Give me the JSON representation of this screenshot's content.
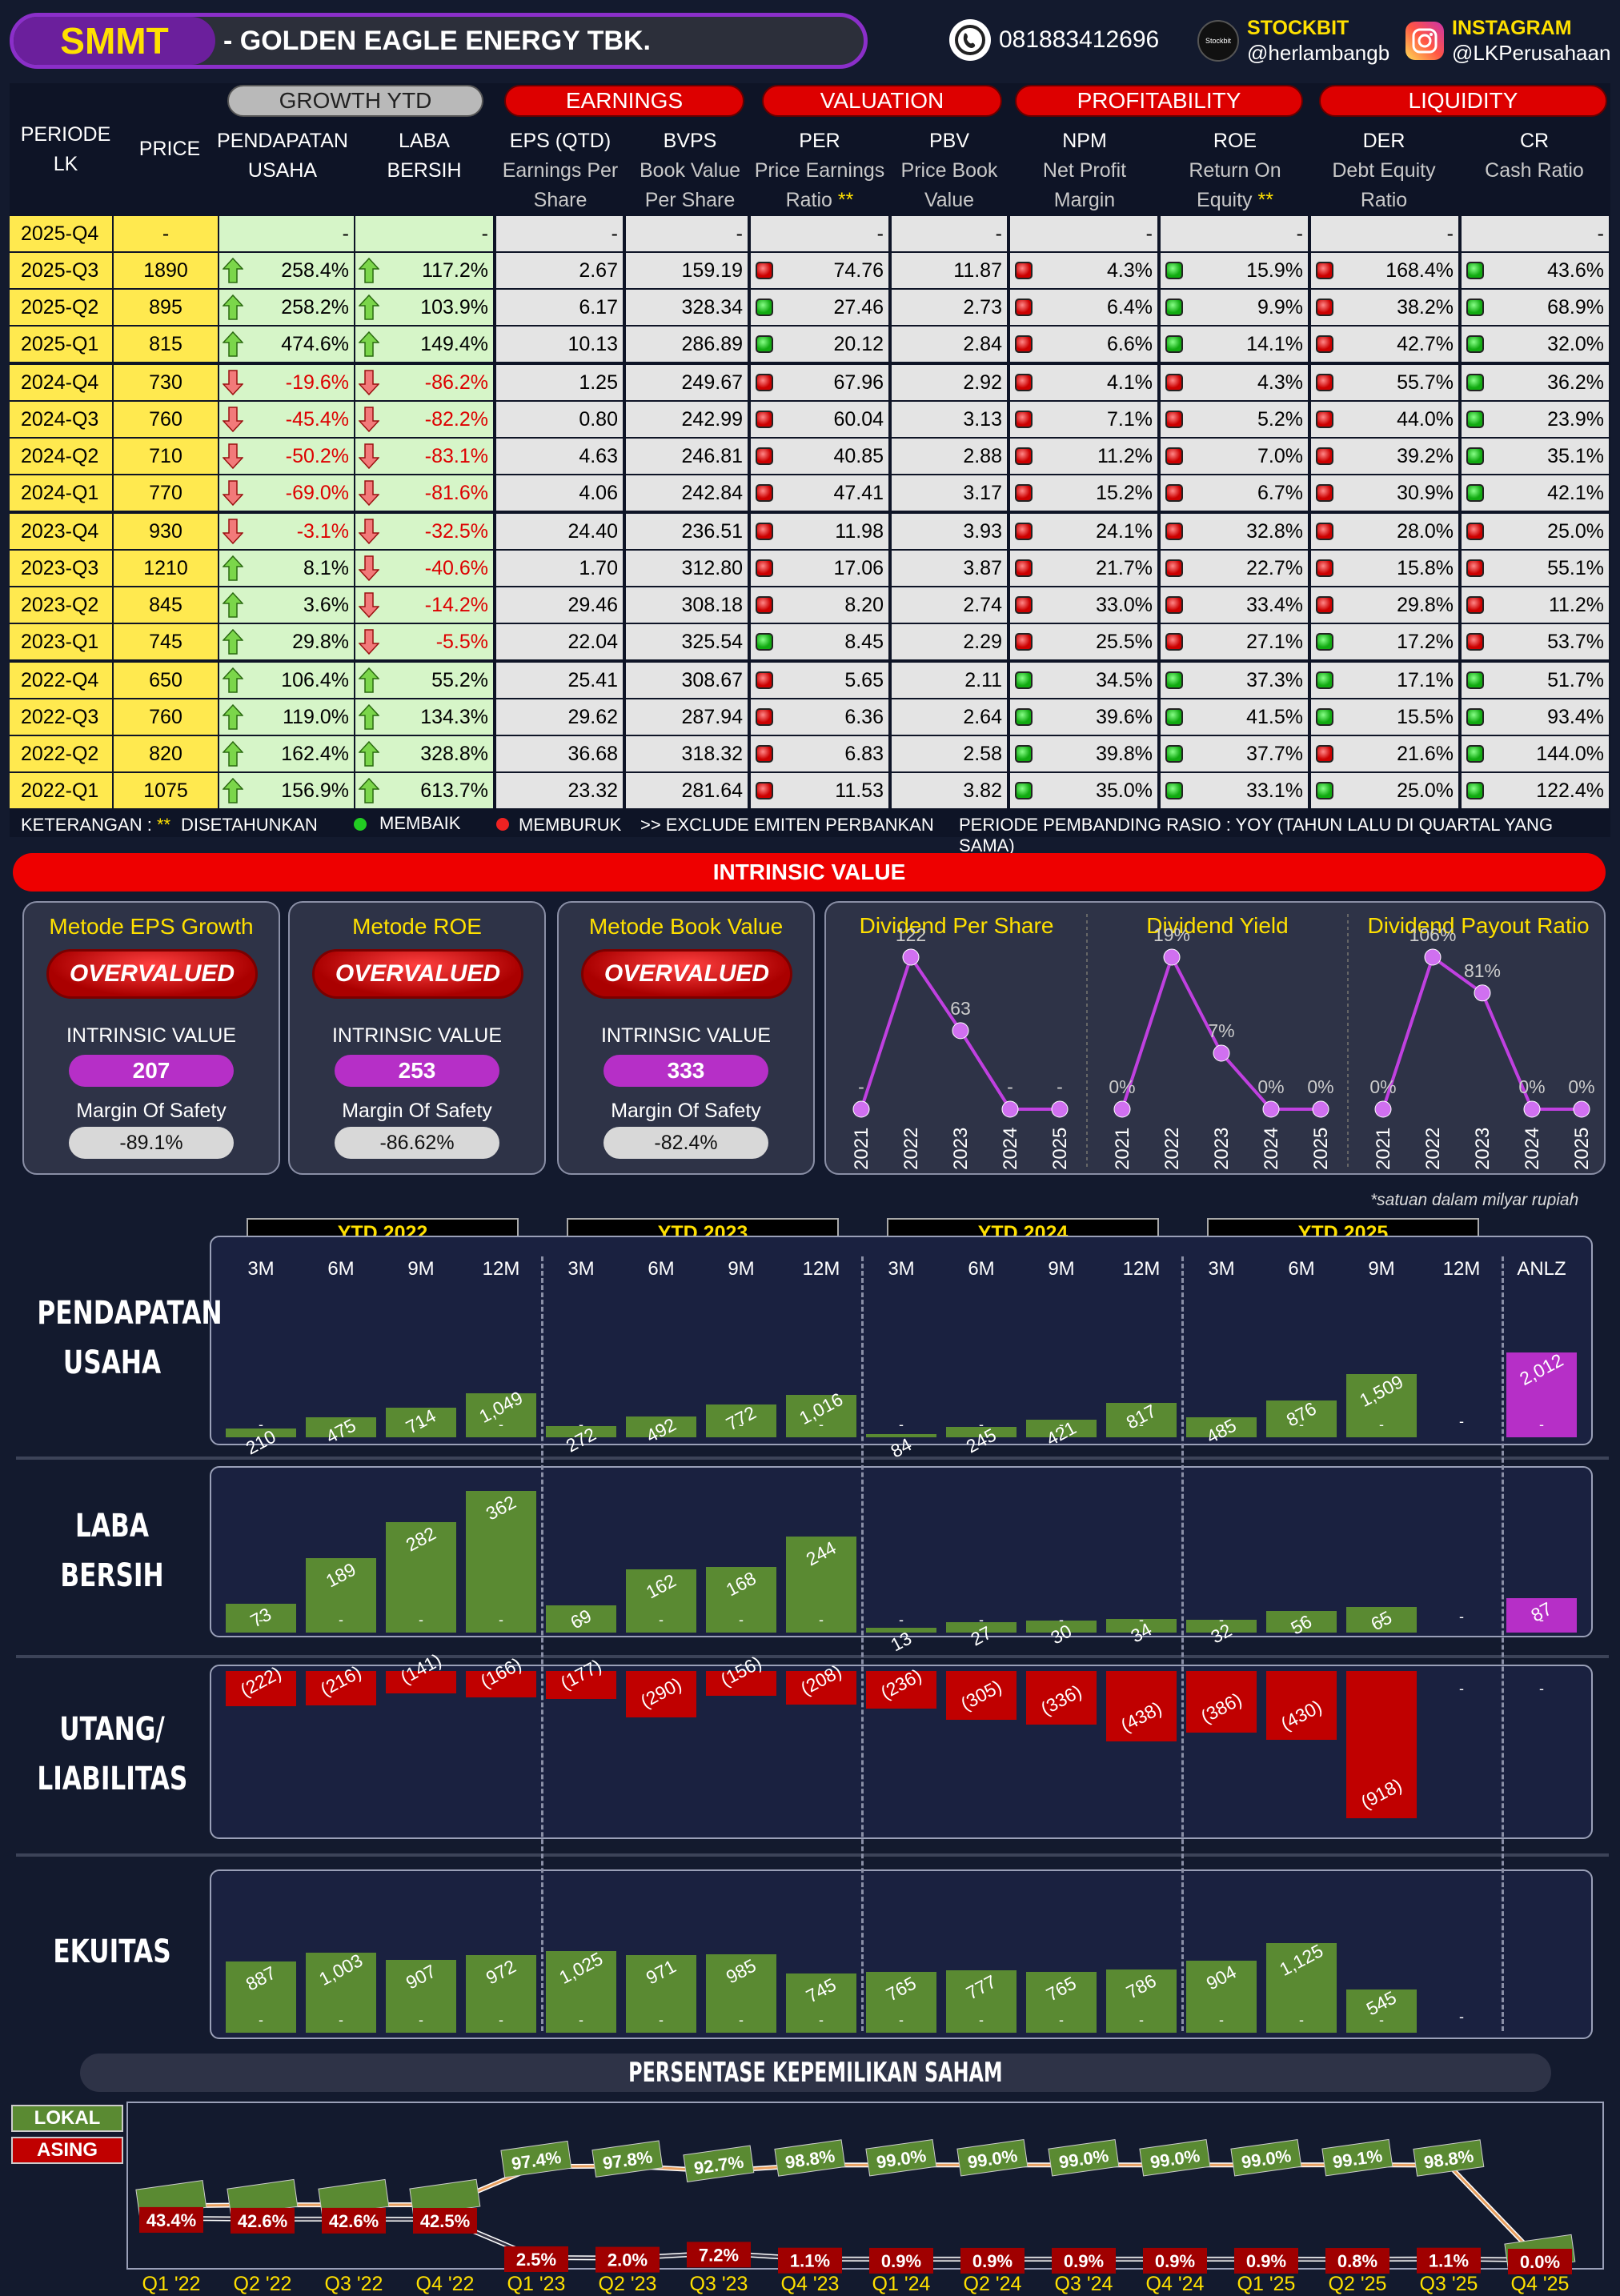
{
  "header": {
    "ticker": "SMMT",
    "company": "-  GOLDEN EAGLE ENERGY TBK.",
    "phone": "081883412696",
    "stockbit_label": "STOCKBIT",
    "stockbit_handle": "@herlambangb",
    "stockbit_icon_text": "Stockbit",
    "instagram_label": "INSTAGRAM",
    "instagram_handle": "@LKPerusahaan"
  },
  "colors": {
    "accent_purple": "#8b2fc9",
    "header_red": "#dd0000",
    "yellow": "#ffe94f",
    "green_bar": "#5a8a32",
    "red_bar": "#c00000",
    "magenta": "#b62fc7"
  },
  "table": {
    "groups": {
      "growth": "GROWTH YTD",
      "earnings": "EARNINGS",
      "valuation": "VALUATION",
      "profitability": "PROFITABILITY",
      "liquidity": "LIQUIDITY"
    },
    "cols": {
      "periode": "PERIODE",
      "lk": "LK",
      "price": "PRICE",
      "pend1": "PENDAPATAN",
      "pend2": "USAHA",
      "laba1": "LABA",
      "laba2": "BERSIH",
      "eps": "EPS (QTD)",
      "eps_s1": "Earnings Per",
      "eps_s2": "Share",
      "bvps": "BVPS",
      "bvps_s1": "Book Value",
      "bvps_s2": "Per Share",
      "per": "PER",
      "per_s1": "Price Earnings",
      "per_s2": "Ratio",
      "pbv": "PBV",
      "pbv_s1": "Price Book",
      "pbv_s2": "Value",
      "npm": "NPM",
      "npm_s1": "Net Profit",
      "npm_s2": "Margin",
      "roe": "ROE",
      "roe_s1": "Return On",
      "roe_s2": "Equity",
      "der": "DER",
      "der_s1": "Debt Equity",
      "der_s2": "Ratio",
      "cr": "CR",
      "cr_s1": "Cash Ratio",
      "star": "**"
    },
    "rows": [
      {
        "p": "2025-Q4",
        "price": "-",
        "rev": "-",
        "rd": "",
        "ni": "-",
        "nd": "",
        "eps": "-",
        "bvps": "-",
        "per": "-",
        "perd": "",
        "pbv": "-",
        "npm": "-",
        "npmd": "",
        "roe": "-",
        "roed": "",
        "der": "-",
        "derd": "",
        "cr": "-",
        "crd": ""
      },
      {
        "p": "2025-Q3",
        "price": "1890",
        "rev": "258.4%",
        "rd": "up",
        "ni": "117.2%",
        "nd": "up",
        "eps": "2.67",
        "bvps": "159.19",
        "per": "74.76",
        "perd": "r",
        "pbv": "11.87",
        "npm": "4.3%",
        "npmd": "r",
        "roe": "15.9%",
        "roed": "g",
        "der": "168.4%",
        "derd": "r",
        "cr": "43.6%",
        "crd": "g"
      },
      {
        "p": "2025-Q2",
        "price": "895",
        "rev": "258.2%",
        "rd": "up",
        "ni": "103.9%",
        "nd": "up",
        "eps": "6.17",
        "bvps": "328.34",
        "per": "27.46",
        "perd": "g",
        "pbv": "2.73",
        "npm": "6.4%",
        "npmd": "r",
        "roe": "9.9%",
        "roed": "g",
        "der": "38.2%",
        "derd": "r",
        "cr": "68.9%",
        "crd": "g"
      },
      {
        "p": "2025-Q1",
        "price": "815",
        "rev": "474.6%",
        "rd": "up",
        "ni": "149.4%",
        "nd": "up",
        "eps": "10.13",
        "bvps": "286.89",
        "per": "20.12",
        "perd": "g",
        "pbv": "2.84",
        "npm": "6.6%",
        "npmd": "r",
        "roe": "14.1%",
        "roed": "g",
        "der": "42.7%",
        "derd": "r",
        "cr": "32.0%",
        "crd": "g"
      },
      {
        "p": "2024-Q4",
        "price": "730",
        "rev": "-19.6%",
        "rd": "down",
        "ni": "-86.2%",
        "nd": "down",
        "eps": "1.25",
        "bvps": "249.67",
        "per": "67.96",
        "perd": "r",
        "pbv": "2.92",
        "npm": "4.1%",
        "npmd": "r",
        "roe": "4.3%",
        "roed": "r",
        "der": "55.7%",
        "derd": "r",
        "cr": "36.2%",
        "crd": "g"
      },
      {
        "p": "2024-Q3",
        "price": "760",
        "rev": "-45.4%",
        "rd": "down",
        "ni": "-82.2%",
        "nd": "down",
        "eps": "0.80",
        "bvps": "242.99",
        "per": "60.04",
        "perd": "r",
        "pbv": "3.13",
        "npm": "7.1%",
        "npmd": "r",
        "roe": "5.2%",
        "roed": "r",
        "der": "44.0%",
        "derd": "r",
        "cr": "23.9%",
        "crd": "g"
      },
      {
        "p": "2024-Q2",
        "price": "710",
        "rev": "-50.2%",
        "rd": "down",
        "ni": "-83.1%",
        "nd": "down",
        "eps": "4.63",
        "bvps": "246.81",
        "per": "40.85",
        "perd": "r",
        "pbv": "2.88",
        "npm": "11.2%",
        "npmd": "r",
        "roe": "7.0%",
        "roed": "r",
        "der": "39.2%",
        "derd": "r",
        "cr": "35.1%",
        "crd": "g"
      },
      {
        "p": "2024-Q1",
        "price": "770",
        "rev": "-69.0%",
        "rd": "down",
        "ni": "-81.6%",
        "nd": "down",
        "eps": "4.06",
        "bvps": "242.84",
        "per": "47.41",
        "perd": "r",
        "pbv": "3.17",
        "npm": "15.2%",
        "npmd": "r",
        "roe": "6.7%",
        "roed": "r",
        "der": "30.9%",
        "derd": "r",
        "cr": "42.1%",
        "crd": "g"
      },
      {
        "p": "2023-Q4",
        "price": "930",
        "rev": "-3.1%",
        "rd": "down",
        "ni": "-32.5%",
        "nd": "down",
        "eps": "24.40",
        "bvps": "236.51",
        "per": "11.98",
        "perd": "r",
        "pbv": "3.93",
        "npm": "24.1%",
        "npmd": "r",
        "roe": "32.8%",
        "roed": "r",
        "der": "28.0%",
        "derd": "r",
        "cr": "25.0%",
        "crd": "r"
      },
      {
        "p": "2023-Q3",
        "price": "1210",
        "rev": "8.1%",
        "rd": "up",
        "ni": "-40.6%",
        "nd": "down",
        "eps": "1.70",
        "bvps": "312.80",
        "per": "17.06",
        "perd": "r",
        "pbv": "3.87",
        "npm": "21.7%",
        "npmd": "r",
        "roe": "22.7%",
        "roed": "r",
        "der": "15.8%",
        "derd": "r",
        "cr": "55.1%",
        "crd": "r"
      },
      {
        "p": "2023-Q2",
        "price": "845",
        "rev": "3.6%",
        "rd": "up",
        "ni": "-14.2%",
        "nd": "down",
        "eps": "29.46",
        "bvps": "308.18",
        "per": "8.20",
        "perd": "r",
        "pbv": "2.74",
        "npm": "33.0%",
        "npmd": "r",
        "roe": "33.4%",
        "roed": "r",
        "der": "29.8%",
        "derd": "r",
        "cr": "11.2%",
        "crd": "r"
      },
      {
        "p": "2023-Q1",
        "price": "745",
        "rev": "29.8%",
        "rd": "up",
        "ni": "-5.5%",
        "nd": "down",
        "eps": "22.04",
        "bvps": "325.54",
        "per": "8.45",
        "perd": "g",
        "pbv": "2.29",
        "npm": "25.5%",
        "npmd": "r",
        "roe": "27.1%",
        "roed": "r",
        "der": "17.2%",
        "derd": "g",
        "cr": "53.7%",
        "crd": "r"
      },
      {
        "p": "2022-Q4",
        "price": "650",
        "rev": "106.4%",
        "rd": "up",
        "ni": "55.2%",
        "nd": "up",
        "eps": "25.41",
        "bvps": "308.67",
        "per": "5.65",
        "perd": "r",
        "pbv": "2.11",
        "npm": "34.5%",
        "npmd": "g",
        "roe": "37.3%",
        "roed": "g",
        "der": "17.1%",
        "derd": "g",
        "cr": "51.7%",
        "crd": "g"
      },
      {
        "p": "2022-Q3",
        "price": "760",
        "rev": "119.0%",
        "rd": "up",
        "ni": "134.3%",
        "nd": "up",
        "eps": "29.62",
        "bvps": "287.94",
        "per": "6.36",
        "perd": "r",
        "pbv": "2.64",
        "npm": "39.6%",
        "npmd": "g",
        "roe": "41.5%",
        "roed": "g",
        "der": "15.5%",
        "derd": "g",
        "cr": "93.4%",
        "crd": "g"
      },
      {
        "p": "2022-Q2",
        "price": "820",
        "rev": "162.4%",
        "rd": "up",
        "ni": "328.8%",
        "nd": "up",
        "eps": "36.68",
        "bvps": "318.32",
        "per": "6.83",
        "perd": "r",
        "pbv": "2.58",
        "npm": "39.8%",
        "npmd": "g",
        "roe": "37.7%",
        "roed": "g",
        "der": "21.6%",
        "derd": "r",
        "cr": "144.0%",
        "crd": "g"
      },
      {
        "p": "2022-Q1",
        "price": "1075",
        "rev": "156.9%",
        "rd": "up",
        "ni": "613.7%",
        "nd": "up",
        "eps": "23.32",
        "bvps": "281.64",
        "per": "11.53",
        "perd": "r",
        "pbv": "3.82",
        "npm": "35.0%",
        "npmd": "g",
        "roe": "33.1%",
        "roed": "g",
        "der": "25.0%",
        "derd": "g",
        "cr": "122.4%",
        "crd": "g"
      }
    ],
    "legend": {
      "keterangan": "KETERANGAN : ",
      "stars": "**",
      "disetahunkan": "DISETAHUNKAN",
      "membaik": "MEMBAIK",
      "memburuk": "MEMBURUK",
      "exclude": ">> EXCLUDE EMITEN PERBANKAN",
      "periode": "PERIODE PEMBANDING RASIO : YOY (TAHUN LALU DI QUARTAL YANG SAMA)"
    }
  },
  "intrinsic": {
    "title": "INTRINSIC VALUE",
    "methods": [
      {
        "title": "Metode EPS Growth",
        "status": "OVERVALUED",
        "iv_label": "INTRINSIC VALUE",
        "iv": "207",
        "ms_label": "Margin Of Safety",
        "ms": "-89.1%"
      },
      {
        "title": "Metode ROE",
        "status": "OVERVALUED",
        "iv_label": "INTRINSIC VALUE",
        "iv": "253",
        "ms_label": "Margin Of Safety",
        "ms": "-86.62%"
      },
      {
        "title": "Metode Book Value",
        "status": "OVERVALUED",
        "iv_label": "INTRINSIC VALUE",
        "iv": "333",
        "ms_label": "Margin Of Safety",
        "ms": "-82.4%"
      }
    ]
  },
  "chart_data": [
    {
      "type": "line",
      "title": "Dividend Per Share",
      "x": [
        "2021",
        "2022",
        "2023",
        "2024",
        "2025"
      ],
      "values": [
        0,
        122,
        63,
        0,
        0
      ],
      "labels": [
        "-",
        "122",
        "63",
        "-",
        "-"
      ]
    },
    {
      "type": "line",
      "title": "Dividend Yield",
      "x": [
        "2021",
        "2022",
        "2023",
        "2024",
        "2025"
      ],
      "values": [
        0,
        19,
        7,
        0,
        0
      ],
      "labels": [
        "0%",
        "19%",
        "7%",
        "0%",
        "0%"
      ]
    },
    {
      "type": "line",
      "title": "Dividend Payout Ratio",
      "x": [
        "2021",
        "2022",
        "2023",
        "2024",
        "2025"
      ],
      "values": [
        0,
        106,
        81,
        0,
        0
      ],
      "labels": [
        "0%",
        "106%",
        "81%",
        "0%",
        "0%"
      ]
    },
    {
      "type": "bar",
      "title": "PENDAPATAN USAHA",
      "categories": [
        "3M",
        "6M",
        "9M",
        "12M",
        "3M",
        "6M",
        "9M",
        "12M",
        "3M",
        "6M",
        "9M",
        "12M",
        "3M",
        "6M",
        "9M",
        "12M",
        "ANLZ"
      ],
      "values": [
        210,
        475,
        714,
        1049,
        272,
        492,
        772,
        1016,
        84,
        245,
        421,
        817,
        485,
        876,
        1509,
        null,
        2012
      ],
      "labels": [
        "210",
        "475",
        "714",
        "1,049",
        "272",
        "492",
        "772",
        "1,016",
        "84",
        "245",
        "421",
        "817",
        "485",
        "876",
        "1,509",
        "-",
        "2,012"
      ]
    },
    {
      "type": "bar",
      "title": "LABA BERSIH",
      "categories": [
        "3M",
        "6M",
        "9M",
        "12M",
        "3M",
        "6M",
        "9M",
        "12M",
        "3M",
        "6M",
        "9M",
        "12M",
        "3M",
        "6M",
        "9M",
        "12M",
        "ANLZ"
      ],
      "values": [
        73,
        189,
        282,
        362,
        69,
        162,
        168,
        244,
        13,
        27,
        30,
        34,
        32,
        56,
        65,
        null,
        87
      ],
      "labels": [
        "73",
        "189",
        "282",
        "362",
        "69",
        "162",
        "168",
        "244",
        "13",
        "27",
        "30",
        "34",
        "32",
        "56",
        "65",
        "-",
        "87"
      ]
    },
    {
      "type": "bar",
      "title": "UTANG/ LIABILITAS",
      "categories": [
        "3M",
        "6M",
        "9M",
        "12M",
        "3M",
        "6M",
        "9M",
        "12M",
        "3M",
        "6M",
        "9M",
        "12M",
        "3M",
        "6M",
        "9M",
        "12M",
        "ANLZ"
      ],
      "values": [
        -222,
        -216,
        -141,
        -166,
        -177,
        -290,
        -156,
        -208,
        -236,
        -305,
        -336,
        -438,
        -386,
        -430,
        -918,
        null,
        null
      ],
      "labels": [
        "(222)",
        "(216)",
        "(141)",
        "(166)",
        "(177)",
        "(290)",
        "(156)",
        "(208)",
        "(236)",
        "(305)",
        "(336)",
        "(438)",
        "(386)",
        "(430)",
        "(918)",
        "-",
        "-"
      ]
    },
    {
      "type": "bar",
      "title": "EKUITAS",
      "categories": [
        "3M",
        "6M",
        "9M",
        "12M",
        "3M",
        "6M",
        "9M",
        "12M",
        "3M",
        "6M",
        "9M",
        "12M",
        "3M",
        "6M",
        "9M",
        "12M"
      ],
      "values": [
        887,
        1003,
        907,
        972,
        1025,
        971,
        985,
        745,
        765,
        777,
        765,
        786,
        904,
        1125,
        545,
        null
      ],
      "labels": [
        "887",
        "1,003",
        "907",
        "972",
        "1,025",
        "971",
        "985",
        "745",
        "765",
        "777",
        "765",
        "786",
        "904",
        "1,125",
        "545",
        "-"
      ]
    },
    {
      "type": "line",
      "title": "PERSENTASE KEPEMILIKAN SAHAM",
      "x": [
        "Q1 '22",
        "Q2 '22",
        "Q3 '22",
        "Q4 '22",
        "Q1 '23",
        "Q2 '23",
        "Q3 '23",
        "Q4 '23",
        "Q1 '24",
        "Q2 '24",
        "Q3 '24",
        "Q4 '24",
        "Q1 '25",
        "Q2 '25",
        "Q3 '25",
        "Q4 '25"
      ],
      "series": [
        {
          "name": "LOKAL",
          "values": [
            56.5,
            57.4,
            57.4,
            57.5,
            97.4,
            97.8,
            92.7,
            98.8,
            99.0,
            99.0,
            99.0,
            99.0,
            99.0,
            99.1,
            98.8,
            0.0
          ],
          "labels": [
            "",
            "",
            "",
            "",
            "97.4%",
            "97.8%",
            "92.7%",
            "98.8%",
            "99.0%",
            "99.0%",
            "99.0%",
            "99.0%",
            "99.0%",
            "99.1%",
            "98.8%",
            ""
          ]
        },
        {
          "name": "ASING",
          "values": [
            43.4,
            42.6,
            42.6,
            42.5,
            2.5,
            2.0,
            7.2,
            1.1,
            0.9,
            0.9,
            0.9,
            0.9,
            0.9,
            0.8,
            1.1,
            0.0
          ],
          "labels": [
            "43.4%",
            "42.6%",
            "42.6%",
            "42.5%",
            "2.5%",
            "2.0%",
            "7.2%",
            "1.1%",
            "0.9%",
            "0.9%",
            "0.9%",
            "0.9%",
            "0.9%",
            "0.8%",
            "1.1%",
            "0.0%"
          ]
        }
      ]
    }
  ],
  "bars": {
    "ytd": [
      "YTD 2022",
      "YTD 2023",
      "YTD 2024",
      "YTD 2025"
    ],
    "months": [
      "3M",
      "6M",
      "9M",
      "12M",
      "3M",
      "6M",
      "9M",
      "12M",
      "3M",
      "6M",
      "9M",
      "12M",
      "3M",
      "6M",
      "9M",
      "12M",
      "ANLZ"
    ],
    "note": "*satuan dalam milyar rupiah",
    "titles": [
      "PENDAPATAN",
      "USAHA",
      "LABA",
      "BERSIH",
      "UTANG/",
      "LIABILITAS",
      "EKUITAS"
    ]
  },
  "ownership": {
    "title": "PERSENTASE KEPEMILIKAN SAHAM",
    "lokal": "LOKAL",
    "asing": "ASING"
  }
}
